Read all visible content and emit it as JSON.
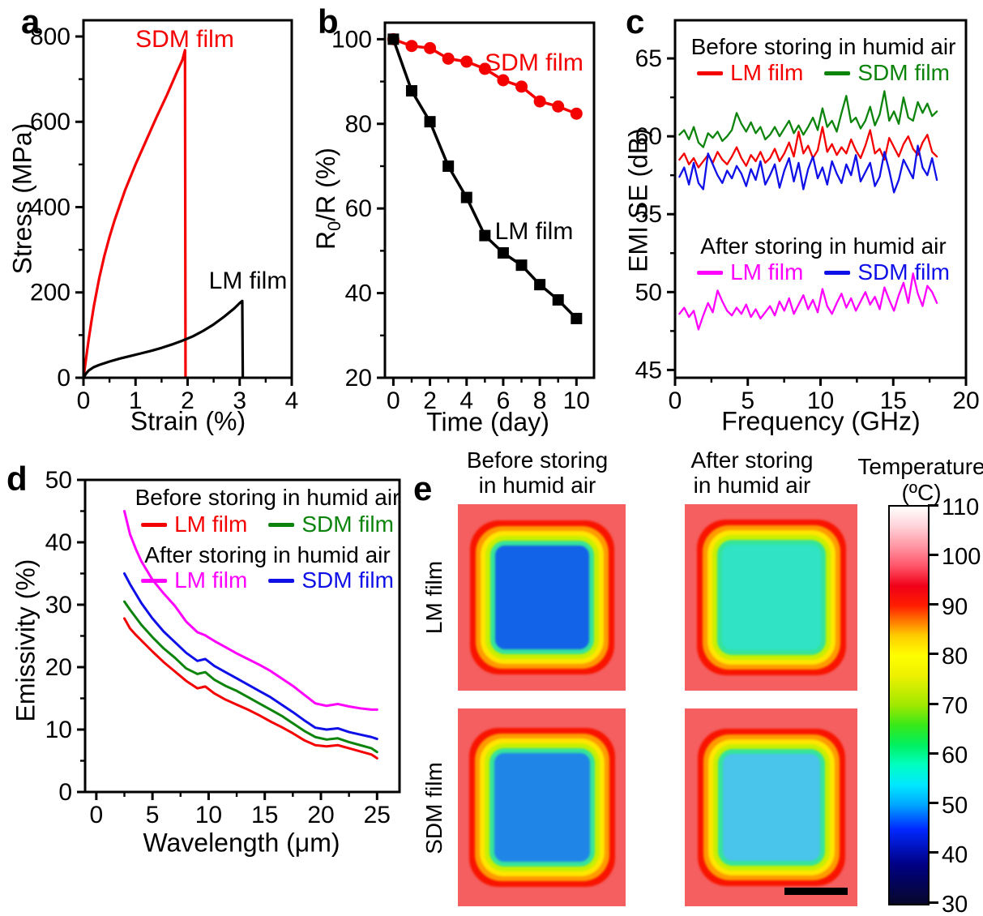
{
  "panels": {
    "a": {
      "letter": "a",
      "annotations": [
        {
          "text": "SDM film",
          "color": "#f50000"
        },
        {
          "text": "LM film",
          "color": "#000000"
        }
      ]
    },
    "b": {
      "letter": "b",
      "ylabel_pre": "R",
      "ylabel_sub": "0",
      "ylabel_post": "/R (%)",
      "annotations": [
        {
          "text": "SDM film",
          "color": "#f50000"
        },
        {
          "text": "LM film",
          "color": "#000000"
        }
      ]
    },
    "c": {
      "letter": "c",
      "legend": {
        "before_title": "Before storing in humid air",
        "after_title": "After storing in humid air",
        "before_items": [
          {
            "label": "LM film",
            "color": "#f50000"
          },
          {
            "label": "SDM film",
            "color": "#0c840c"
          }
        ],
        "after_items": [
          {
            "label": "LM film",
            "color": "#ff00ff"
          },
          {
            "label": "SDM film",
            "color": "#0f0fe8"
          }
        ]
      }
    },
    "d": {
      "letter": "d",
      "legend": {
        "before_title": "Before storing in humid air",
        "after_title": "After storing in humid air",
        "before_items": [
          {
            "label": "LM film",
            "color": "#f50000"
          },
          {
            "label": "SDM film",
            "color": "#0c840c"
          }
        ],
        "after_items": [
          {
            "label": "LM film",
            "color": "#ff00ff"
          },
          {
            "label": "SDM film",
            "color": "#0f0fe8"
          }
        ]
      }
    },
    "e": {
      "letter": "e",
      "col_headers": [
        {
          "line1": "Before storing",
          "line2": "in humid air"
        },
        {
          "line1": "After storing",
          "line2": "in humid air"
        }
      ],
      "row_labels": [
        "LM film",
        "SDM film"
      ],
      "colorbar": {
        "title": "Temperature",
        "unit": "(ºC)",
        "ticks": [
          110,
          100,
          90,
          80,
          70,
          60,
          50,
          40,
          30
        ],
        "range": [
          30,
          110
        ],
        "stops": [
          {
            "v": 30,
            "c": "#07072b"
          },
          {
            "v": 38,
            "c": "#000085"
          },
          {
            "v": 45,
            "c": "#0028ff"
          },
          {
            "v": 50,
            "c": "#00a8ff"
          },
          {
            "v": 54,
            "c": "#00e8ff"
          },
          {
            "v": 58,
            "c": "#00ffc0"
          },
          {
            "v": 62,
            "c": "#00f060"
          },
          {
            "v": 66,
            "c": "#38e818"
          },
          {
            "v": 70,
            "c": "#a0e800"
          },
          {
            "v": 76,
            "c": "#eef000"
          },
          {
            "v": 80,
            "c": "#ffff00"
          },
          {
            "v": 84,
            "c": "#ffcc00"
          },
          {
            "v": 87,
            "c": "#ff7700"
          },
          {
            "v": 90,
            "c": "#ff1e00"
          },
          {
            "v": 94,
            "c": "#f00018"
          },
          {
            "v": 98,
            "c": "#ff5468"
          },
          {
            "v": 102,
            "c": "#ff96a4"
          },
          {
            "v": 106,
            "c": "#ffd2d8"
          },
          {
            "v": 110,
            "c": "#ffffff"
          }
        ]
      },
      "background_color": "#f55f5f",
      "ring_colors": [
        "#35e49a",
        "#c8ef00",
        "#ffe600",
        "#ff9a00",
        "#f81400"
      ],
      "images": [
        {
          "name": "lm-film-before",
          "center_color": "#1263e8"
        },
        {
          "name": "lm-film-after",
          "center_color": "#2fe3c4"
        },
        {
          "name": "sdm-film-before",
          "center_color": "#1f86e8"
        },
        {
          "name": "sdm-film-after",
          "center_color": "#49c4ea"
        }
      ]
    }
  },
  "chart_data": [
    {
      "id": "chart-a",
      "type": "line",
      "title": "",
      "xlabel": "Strain (%)",
      "ylabel": "Stress (MPa)",
      "xlim": [
        0,
        4
      ],
      "ylim": [
        0,
        838
      ],
      "xticks": [
        0,
        1,
        2,
        3,
        4
      ],
      "yticks": [
        0,
        200,
        400,
        600,
        800
      ],
      "xminor": [
        0.5,
        1.5,
        2.5,
        3.5
      ],
      "yminor": [
        100,
        300,
        500,
        700
      ],
      "grid": false,
      "series": [
        {
          "name": "SDM film",
          "color": "#f50000",
          "width": 3.2,
          "x": [
            0,
            0.05,
            0.1,
            0.15,
            0.2,
            0.3,
            0.4,
            0.5,
            0.6,
            0.8,
            1.0,
            1.2,
            1.4,
            1.6,
            1.8,
            1.9,
            1.95,
            1.96
          ],
          "y": [
            0,
            45,
            90,
            130,
            168,
            232,
            285,
            330,
            370,
            440,
            500,
            555,
            610,
            662,
            718,
            745,
            768,
            0
          ]
        },
        {
          "name": "LM film",
          "color": "#000000",
          "width": 3.2,
          "x": [
            0,
            0.05,
            0.1,
            0.2,
            0.3,
            0.5,
            0.7,
            0.9,
            1.1,
            1.3,
            1.5,
            1.7,
            1.9,
            2.1,
            2.3,
            2.5,
            2.7,
            2.9,
            3.0,
            3.05,
            3.06
          ],
          "y": [
            0,
            10,
            17,
            25,
            30,
            38,
            45,
            51,
            57,
            63,
            70,
            78,
            87,
            97,
            110,
            125,
            143,
            163,
            175,
            180,
            0
          ]
        }
      ]
    },
    {
      "id": "chart-b",
      "type": "line",
      "title": "",
      "xlabel": "Time (day)",
      "ylabel": "R0/R (%)",
      "xlim": [
        -0.46,
        10.96
      ],
      "ylim": [
        20,
        103.9
      ],
      "xticks": [
        0,
        2,
        4,
        6,
        8,
        10
      ],
      "yticks": [
        20,
        40,
        60,
        80,
        100
      ],
      "xminor": [
        1,
        3,
        5,
        7,
        9
      ],
      "yminor": [
        30,
        50,
        70,
        90
      ],
      "grid": false,
      "series": [
        {
          "name": "SDM film",
          "color": "#f50000",
          "width": 3.5,
          "marker": "circle",
          "marker_size": 15,
          "x": [
            0,
            1,
            2,
            3,
            4,
            5,
            6,
            7,
            8,
            9,
            10
          ],
          "y": [
            100,
            98.4,
            97.9,
            95.4,
            94.7,
            93.0,
            90.3,
            88.8,
            85.3,
            84.1,
            82.4
          ]
        },
        {
          "name": "LM film",
          "color": "#000000",
          "width": 3.5,
          "marker": "square",
          "marker_size": 14,
          "x": [
            0,
            1,
            2,
            3,
            4,
            5,
            6,
            7,
            8,
            9,
            10
          ],
          "y": [
            100,
            87.8,
            80.5,
            70.0,
            62.6,
            53.6,
            49.5,
            46.6,
            42.0,
            38.4,
            34.0
          ]
        }
      ]
    },
    {
      "id": "chart-c",
      "type": "line",
      "title": "",
      "xlabel": "Frequency (GHz)",
      "ylabel": "EMI SE (dB)",
      "xlim": [
        0,
        20
      ],
      "ylim": [
        44.5,
        67.45
      ],
      "xticks": [
        0,
        5,
        10,
        15,
        20
      ],
      "yticks": [
        45,
        50,
        55,
        60,
        65
      ],
      "xminor": [
        2.5,
        7.5,
        12.5,
        17.5
      ],
      "yminor": [
        47.5,
        52.5,
        57.5,
        62.5
      ],
      "x_start": 0.3,
      "x_end": 18,
      "grid": false,
      "series": [
        {
          "name": "SDM film before",
          "color": "#0c840c",
          "width": 2.3,
          "values": [
            60.1,
            60.4,
            59.8,
            60.6,
            59.6,
            59.3,
            60.2,
            59.9,
            60.3,
            59.7,
            60.0,
            60.4,
            61.5,
            60.8,
            60.3,
            60.9,
            60.2,
            60.6,
            59.8,
            60.1,
            60.6,
            60.0,
            60.5,
            61.0,
            60.2,
            60.7,
            60.1,
            60.6,
            61.2,
            60.4,
            61.8,
            60.6,
            61.0,
            60.3,
            61.5,
            62.6,
            60.9,
            61.2,
            60.5,
            61.0,
            61.9,
            60.7,
            61.4,
            62.9,
            61.0,
            61.6,
            60.8,
            62.5,
            61.2,
            61.0,
            62.2,
            61.5,
            62.1,
            61.3,
            61.6
          ]
        },
        {
          "name": "LM film before",
          "color": "#f50000",
          "width": 2.3,
          "values": [
            58.5,
            58.9,
            58.2,
            58.6,
            58.0,
            58.4,
            58.8,
            58.3,
            59.0,
            58.5,
            58.2,
            58.7,
            59.3,
            58.6,
            58.1,
            58.8,
            58.4,
            59.0,
            58.3,
            58.6,
            59.2,
            58.4,
            58.9,
            59.6,
            58.7,
            60.3,
            58.9,
            59.4,
            58.6,
            59.1,
            60.6,
            59.0,
            59.5,
            58.8,
            59.3,
            58.9,
            59.8,
            59.1,
            58.6,
            59.4,
            60.4,
            58.9,
            59.2,
            58.5,
            59.9,
            59.3,
            58.7,
            59.5,
            60.0,
            59.2,
            58.8,
            59.6,
            60.1,
            59.0,
            58.7
          ]
        },
        {
          "name": "SDM film after",
          "color": "#0f0fe8",
          "width": 2.3,
          "values": [
            57.4,
            58.0,
            56.9,
            58.3,
            57.0,
            56.6,
            58.9,
            58.2,
            57.5,
            57.0,
            57.8,
            57.3,
            58.1,
            57.6,
            56.8,
            57.9,
            57.2,
            58.4,
            56.9,
            57.5,
            58.2,
            56.7,
            57.8,
            58.6,
            57.1,
            58.3,
            56.6,
            57.9,
            58.7,
            57.3,
            58.0,
            56.9,
            58.4,
            57.6,
            57.0,
            58.2,
            57.5,
            58.8,
            57.1,
            57.7,
            58.3,
            56.8,
            57.4,
            59.0,
            57.8,
            56.4,
            57.2,
            58.5,
            57.9,
            57.3,
            59.4,
            58.0,
            57.5,
            58.6,
            57.2
          ]
        },
        {
          "name": "LM film after",
          "color": "#ff00ff",
          "width": 2.3,
          "values": [
            48.6,
            49.0,
            48.4,
            48.8,
            47.6,
            48.5,
            49.3,
            48.7,
            50.1,
            49.4,
            48.8,
            48.5,
            49.0,
            48.6,
            49.2,
            48.4,
            48.9,
            48.3,
            48.7,
            49.1,
            48.5,
            49.4,
            48.8,
            49.6,
            48.6,
            49.2,
            49.8,
            48.9,
            49.5,
            48.7,
            50.2,
            49.1,
            48.6,
            49.3,
            49.9,
            49.0,
            49.6,
            48.8,
            49.4,
            50.0,
            49.2,
            49.7,
            48.9,
            50.3,
            49.5,
            48.8,
            49.8,
            50.6,
            49.3,
            51.2,
            49.9,
            49.1,
            50.4,
            50.0,
            49.3
          ]
        }
      ]
    },
    {
      "id": "chart-d",
      "type": "line",
      "title": "",
      "xlabel": "Wavelength (μm)",
      "ylabel": "Emissivity (%)",
      "xlim": [
        -1,
        27
      ],
      "ylim": [
        0,
        50
      ],
      "xticks": [
        0,
        5,
        10,
        15,
        20,
        25
      ],
      "yticks": [
        0,
        10,
        20,
        30,
        40,
        50
      ],
      "xminor": [
        2.5,
        7.5,
        12.5,
        17.5,
        22.5
      ],
      "yminor": [
        5,
        15,
        25,
        35,
        45
      ],
      "grid": false,
      "series": [
        {
          "name": "LM film after",
          "color": "#ff00ff",
          "width": 3,
          "x": [
            2.5,
            3,
            3.5,
            4,
            5,
            6,
            7,
            8,
            9,
            9.7,
            10.5,
            11.5,
            12.5,
            13.5,
            14.5,
            15.5,
            16.5,
            17.5,
            18.5,
            19.5,
            20.5,
            21.5,
            22.5,
            23.5,
            24.5,
            25
          ],
          "y": [
            45,
            41.3,
            39,
            37,
            34,
            31.8,
            29.8,
            27.3,
            25.6,
            25.1,
            24.2,
            23.2,
            22.2,
            21.3,
            20.4,
            19.4,
            18.2,
            17.0,
            15.6,
            14.2,
            13.8,
            14.1,
            13.7,
            13.4,
            13.2,
            13.2
          ]
        },
        {
          "name": "SDM film after",
          "color": "#0f0fe8",
          "width": 3,
          "x": [
            2.5,
            3,
            3.5,
            4,
            5,
            6,
            7,
            8,
            9,
            9.7,
            10.5,
            11.5,
            12.5,
            13.5,
            14.5,
            15.5,
            16.5,
            17.5,
            18.5,
            19.5,
            20.5,
            21.5,
            22.5,
            23.5,
            24.5,
            25
          ],
          "y": [
            35,
            33.3,
            31.8,
            30.3,
            27.8,
            25.7,
            24.0,
            22.3,
            21.0,
            21.3,
            20.2,
            19.2,
            18.2,
            17.2,
            16.2,
            15.2,
            14.0,
            12.8,
            11.5,
            10.3,
            10.0,
            10.2,
            9.6,
            9.2,
            8.8,
            8.5
          ]
        },
        {
          "name": "SDM film before",
          "color": "#0c840c",
          "width": 3,
          "x": [
            2.5,
            3,
            3.5,
            4,
            5,
            6,
            7,
            8,
            9,
            9.7,
            10.5,
            11.5,
            12.5,
            13.5,
            14.5,
            15.5,
            16.5,
            17.5,
            18.5,
            19.5,
            20.5,
            21.5,
            22.5,
            23.5,
            24.5,
            25
          ],
          "y": [
            30.5,
            29.2,
            28.0,
            26.8,
            24.8,
            23.0,
            21.5,
            19.8,
            18.9,
            19.2,
            18.0,
            17.0,
            16.2,
            15.2,
            14.2,
            13.2,
            12.2,
            11.0,
            9.8,
            8.8,
            8.4,
            8.6,
            8.0,
            7.5,
            7.0,
            6.4
          ]
        },
        {
          "name": "LM film before",
          "color": "#f50000",
          "width": 3,
          "x": [
            2.5,
            3,
            3.5,
            4,
            5,
            6,
            7,
            8,
            9,
            9.7,
            10.5,
            11.5,
            12.5,
            13.5,
            14.5,
            15.5,
            16.5,
            17.5,
            18.5,
            19.5,
            20.5,
            21.5,
            22.5,
            23.5,
            24.5,
            25
          ],
          "y": [
            27.8,
            26.2,
            25.2,
            24.3,
            22.5,
            20.8,
            19.3,
            17.8,
            16.6,
            16.9,
            15.8,
            14.8,
            14.0,
            13.2,
            12.3,
            11.3,
            10.4,
            9.4,
            8.3,
            7.5,
            7.3,
            7.5,
            7.0,
            6.5,
            6.0,
            5.4
          ]
        }
      ]
    }
  ]
}
